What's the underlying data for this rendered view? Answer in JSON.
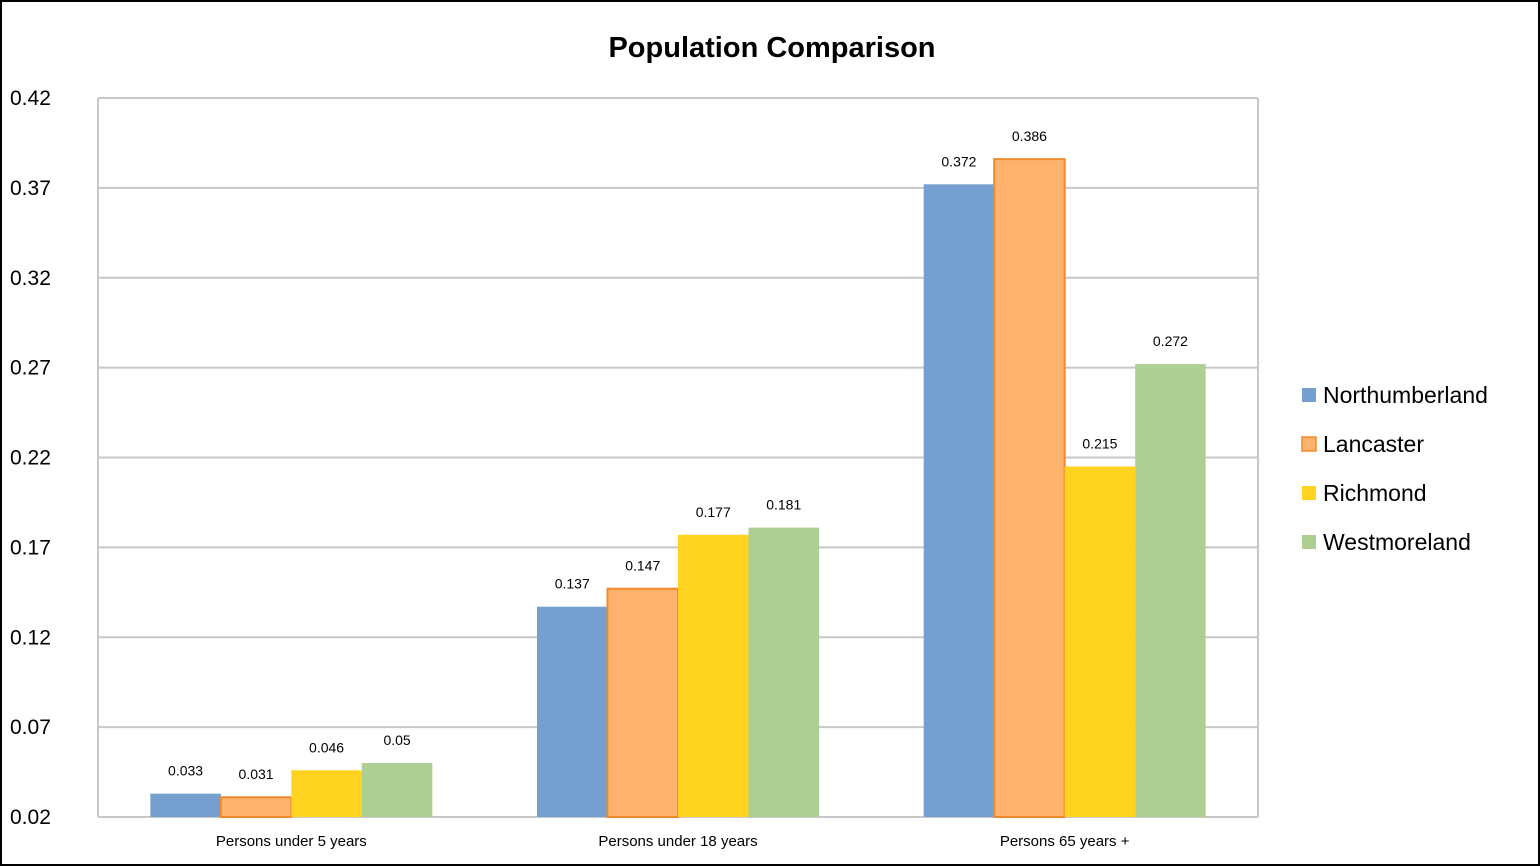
{
  "chart_data": {
    "type": "bar",
    "title": "Population Comparison",
    "xlabel": "",
    "ylabel": "",
    "categories": [
      "Persons under 5 years",
      "Persons under 18 years",
      "Persons 65 years +"
    ],
    "series": [
      {
        "name": "Northumberland",
        "values": [
          0.033,
          0.137,
          0.372
        ],
        "color": "#759FCF",
        "labels": [
          "0.033",
          "0.137",
          "0.372"
        ]
      },
      {
        "name": "Lancaster",
        "values": [
          0.031,
          0.147,
          0.386
        ],
        "color": "#FFB26E",
        "stroke": "#F08A2C",
        "labels": [
          "0.031",
          "0.147",
          "0.386"
        ]
      },
      {
        "name": "Richmond",
        "values": [
          0.046,
          0.177,
          0.215
        ],
        "color": "#FFD320",
        "labels": [
          "0.046",
          "0.177",
          "0.215"
        ]
      },
      {
        "name": "Westmoreland",
        "values": [
          0.05,
          0.181,
          0.272
        ],
        "color": "#AECF93",
        "labels": [
          "0.05",
          "0.181",
          "0.272"
        ]
      }
    ],
    "ylim": [
      0.02,
      0.42
    ],
    "yticks": [
      "0.02",
      "0.07",
      "0.12",
      "0.17",
      "0.22",
      "0.27",
      "0.32",
      "0.37",
      "0.42"
    ],
    "grid": true,
    "legend": "right"
  }
}
